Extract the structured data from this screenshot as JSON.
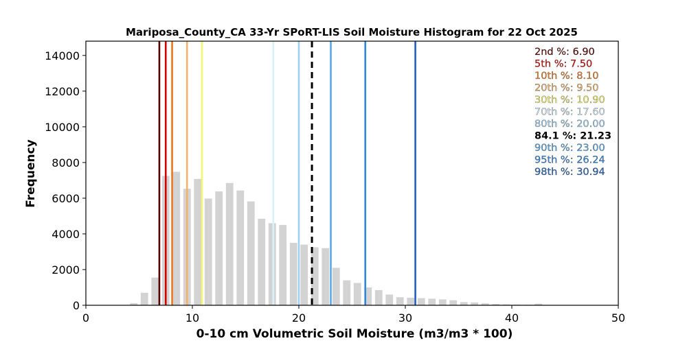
{
  "chart_data": {
    "type": "bar",
    "title": "Mariposa_County_CA 33-Yr SPoRT-LIS Soil Moisture Histogram for 22 Oct 2025",
    "xlabel": "0-10 cm Volumetric Soil Moisture (m3/m3 * 100)",
    "ylabel": "Frequency",
    "xlim": [
      0,
      50
    ],
    "ylim": [
      0,
      14800
    ],
    "xticks": [
      0,
      10,
      20,
      30,
      40,
      50
    ],
    "yticks": [
      0,
      2000,
      4000,
      6000,
      8000,
      10000,
      12000,
      14000
    ],
    "bar_color": "#d3d3d3",
    "bar_width": 0.7,
    "bins": [
      {
        "x": 4.5,
        "y": 120
      },
      {
        "x": 5.5,
        "y": 700
      },
      {
        "x": 6.5,
        "y": 1550
      },
      {
        "x": 7.5,
        "y": 7250
      },
      {
        "x": 8.5,
        "y": 7480
      },
      {
        "x": 9.5,
        "y": 6530
      },
      {
        "x": 10.5,
        "y": 7080
      },
      {
        "x": 11.5,
        "y": 5980
      },
      {
        "x": 12.5,
        "y": 6380
      },
      {
        "x": 13.5,
        "y": 6850
      },
      {
        "x": 14.5,
        "y": 6430
      },
      {
        "x": 15.5,
        "y": 5820
      },
      {
        "x": 16.5,
        "y": 4850
      },
      {
        "x": 17.5,
        "y": 4600
      },
      {
        "x": 18.5,
        "y": 4500
      },
      {
        "x": 19.5,
        "y": 3500
      },
      {
        "x": 20.5,
        "y": 3400
      },
      {
        "x": 21.5,
        "y": 3250
      },
      {
        "x": 22.5,
        "y": 3200
      },
      {
        "x": 23.5,
        "y": 2100
      },
      {
        "x": 24.5,
        "y": 1400
      },
      {
        "x": 25.5,
        "y": 1250
      },
      {
        "x": 26.5,
        "y": 1000
      },
      {
        "x": 27.5,
        "y": 850
      },
      {
        "x": 28.5,
        "y": 600
      },
      {
        "x": 29.5,
        "y": 450
      },
      {
        "x": 30.5,
        "y": 420
      },
      {
        "x": 31.5,
        "y": 400
      },
      {
        "x": 32.5,
        "y": 370
      },
      {
        "x": 33.5,
        "y": 330
      },
      {
        "x": 34.5,
        "y": 280
      },
      {
        "x": 35.5,
        "y": 180
      },
      {
        "x": 36.5,
        "y": 160
      },
      {
        "x": 37.5,
        "y": 110
      },
      {
        "x": 38.5,
        "y": 70
      },
      {
        "x": 39.5,
        "y": 50
      },
      {
        "x": 40.5,
        "y": 40
      },
      {
        "x": 41.5,
        "y": 30
      },
      {
        "x": 42.5,
        "y": 90
      }
    ],
    "percentiles": [
      {
        "label": "2nd %: 6.90",
        "value": 6.9,
        "color": "#5a0000"
      },
      {
        "label": "5th %: 7.50",
        "value": 7.5,
        "color": "#d40000"
      },
      {
        "label": "10th %: 8.10",
        "value": 8.1,
        "color": "#e8781e"
      },
      {
        "label": "20th %: 9.50",
        "value": 9.5,
        "color": "#f4b26b"
      },
      {
        "label": "30th %: 10.90",
        "value": 10.9,
        "color": "#f6f66a"
      },
      {
        "label": "70th %: 17.60",
        "value": 17.6,
        "color": "#d9f1fb"
      },
      {
        "label": "80th %: 20.00",
        "value": 20.0,
        "color": "#9fd0f0"
      },
      {
        "label": "84.1 %: 21.23",
        "value": 21.23,
        "color": "#000000",
        "dashed": true,
        "bold": true
      },
      {
        "label": "90th %: 23.00",
        "value": 23.0,
        "color": "#5aa6e6"
      },
      {
        "label": "95th %: 26.24",
        "value": 26.24,
        "color": "#3286dc"
      },
      {
        "label": "98th %: 30.94",
        "value": 30.94,
        "color": "#1f5fbf"
      }
    ],
    "legend_position": "top-right"
  }
}
